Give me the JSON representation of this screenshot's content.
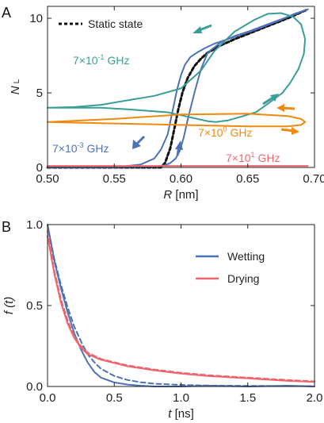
{
  "panels": {
    "a": "A",
    "b": "B"
  },
  "colors": {
    "teal": "#3a9e96",
    "orange": "#f0890f",
    "blue": "#4d72b8",
    "red": "#f0646e",
    "black": "#111111"
  },
  "chart_data": [
    {
      "type": "line",
      "panel": "A",
      "xlabel_italic": "R",
      "xlabel_unit": " [nm]",
      "ylabel_main": "N",
      "ylabel_sub": "L",
      "xlim": [
        0.5,
        0.7
      ],
      "ylim": [
        0,
        10.8
      ],
      "x_ticks": [
        0.5,
        0.55,
        0.6,
        0.65,
        0.7
      ],
      "x_tick_labels": [
        "0.50",
        "0.55",
        "0.60",
        "0.65",
        "0.70"
      ],
      "y_ticks": [
        0,
        5,
        10
      ],
      "y_tick_labels": [
        "0",
        "5",
        "10"
      ],
      "legend": {
        "label": "Static state",
        "placement": "top-left"
      },
      "annotations": {
        "teal": {
          "pre": "7×10",
          "exp": "-1",
          "post": " GHz"
        },
        "orange": {
          "pre": "7×10",
          "exp": "0",
          "post": " GHz"
        },
        "blue": {
          "pre": "7×10",
          "exp": "-3",
          "post": " GHz"
        },
        "red": {
          "pre": "7×10",
          "exp": "1",
          "post": " GHz"
        }
      },
      "series": [
        {
          "name": "Static state",
          "color": "#111111",
          "dashed": true,
          "x": [
            0.5,
            0.585,
            0.588,
            0.592,
            0.595,
            0.598,
            0.601,
            0.605,
            0.61,
            0.615,
            0.62,
            0.63,
            0.64,
            0.65,
            0.66,
            0.67,
            0.68,
            0.69,
            0.695
          ],
          "y": [
            0.0,
            0.0,
            0.3,
            1.3,
            2.6,
            3.9,
            5.0,
            6.0,
            6.8,
            7.3,
            7.7,
            8.2,
            8.6,
            8.95,
            9.3,
            9.65,
            10.0,
            10.4,
            10.6
          ]
        },
        {
          "color": "#4d72b8",
          "x": [
            0.5,
            0.55,
            0.57,
            0.58,
            0.585,
            0.59,
            0.593,
            0.597,
            0.6,
            0.603,
            0.607,
            0.612,
            0.618,
            0.625,
            0.635,
            0.645,
            0.655,
            0.665,
            0.675,
            0.685,
            0.695
          ],
          "y": [
            0.0,
            0.0,
            0.2,
            0.6,
            1.2,
            2.2,
            3.5,
            5.2,
            6.2,
            6.9,
            7.4,
            7.7,
            8.0,
            8.3,
            8.6,
            8.9,
            9.2,
            9.55,
            9.9,
            10.3,
            10.6
          ]
        },
        {
          "color": "#4d72b8",
          "x": [
            0.695,
            0.68,
            0.665,
            0.65,
            0.64,
            0.63,
            0.62,
            0.615,
            0.61,
            0.605,
            0.602,
            0.599,
            0.596,
            0.592,
            0.588,
            0.584,
            0.58,
            0.575,
            0.57,
            0.56,
            0.55,
            0.5
          ],
          "y": [
            10.6,
            10.1,
            9.6,
            9.1,
            8.8,
            8.4,
            7.7,
            6.6,
            5.0,
            3.2,
            2.0,
            1.1,
            0.6,
            0.3,
            0.15,
            0.1,
            0.05,
            0.03,
            0.02,
            0.01,
            0.0,
            0.0
          ]
        },
        {
          "color": "#3a9e96",
          "x": [
            0.5,
            0.52,
            0.54,
            0.56,
            0.58,
            0.6,
            0.615,
            0.625,
            0.64,
            0.655,
            0.665,
            0.675,
            0.684,
            0.69,
            0.693,
            0.692,
            0.688,
            0.682,
            0.676,
            0.67,
            0.664,
            0.656,
            0.645,
            0.635,
            0.626,
            0.62,
            0.61,
            0.6,
            0.59,
            0.575,
            0.56,
            0.54,
            0.52,
            0.5
          ],
          "y": [
            4.0,
            4.05,
            4.2,
            4.5,
            4.8,
            5.3,
            6.5,
            7.8,
            9.1,
            9.9,
            10.3,
            10.35,
            10.1,
            9.6,
            8.6,
            7.6,
            6.6,
            5.7,
            5.0,
            4.6,
            4.2,
            3.7,
            3.4,
            3.15,
            3.05,
            3.1,
            3.3,
            3.5,
            3.7,
            3.8,
            3.9,
            4.0,
            4.0,
            4.0
          ]
        },
        {
          "color": "#f0890f",
          "x": [
            0.5,
            0.55,
            0.6,
            0.65,
            0.68,
            0.69,
            0.693,
            0.69,
            0.68,
            0.65,
            0.6,
            0.55,
            0.5
          ],
          "y": [
            3.05,
            3.25,
            3.55,
            3.6,
            3.45,
            3.25,
            3.05,
            2.85,
            2.75,
            2.75,
            2.85,
            2.95,
            3.05
          ]
        },
        {
          "color": "#f0646e",
          "x": [
            0.5,
            0.695
          ],
          "y": [
            0.1,
            0.1
          ]
        }
      ]
    },
    {
      "type": "line",
      "panel": "B",
      "xlabel_italic": "t",
      "xlabel_unit": " [ns]",
      "ylabel_main": "f (t)",
      "xlim": [
        0.0,
        2.0
      ],
      "ylim": [
        0.0,
        1.0
      ],
      "x_ticks": [
        0.0,
        0.5,
        1.0,
        1.5,
        2.0
      ],
      "x_tick_labels": [
        "0.0",
        "0.5",
        "1.0",
        "1.5",
        "2.0"
      ],
      "y_ticks": [
        0.0,
        0.5,
        1.0
      ],
      "y_tick_labels": [
        "0.0",
        "0.5",
        "1.0"
      ],
      "legend": {
        "placement": "top-right"
      },
      "series": [
        {
          "name": "Wetting",
          "color": "#4d72b8",
          "x": [
            0.0,
            0.05,
            0.1,
            0.15,
            0.2,
            0.25,
            0.3,
            0.35,
            0.4,
            0.5,
            0.6,
            0.7,
            0.8,
            1.0,
            1.2,
            1.5,
            1.8,
            2.0
          ],
          "y": [
            1.0,
            0.78,
            0.61,
            0.46,
            0.33,
            0.23,
            0.15,
            0.09,
            0.055,
            0.025,
            0.012,
            0.005,
            0.0,
            0.0,
            0.005,
            0.0,
            0.005,
            0.0
          ]
        },
        {
          "color": "#4d72b8",
          "dashed": true,
          "x": [
            0.0,
            0.05,
            0.1,
            0.15,
            0.2,
            0.25,
            0.3,
            0.35,
            0.4,
            0.5,
            0.6,
            0.7,
            0.8,
            1.0,
            1.2,
            1.5,
            1.8,
            2.0
          ],
          "y": [
            1.0,
            0.79,
            0.63,
            0.49,
            0.37,
            0.28,
            0.2,
            0.15,
            0.11,
            0.065,
            0.04,
            0.026,
            0.017,
            0.01,
            0.006,
            0.004,
            0.003,
            0.002
          ]
        },
        {
          "name": "Drying",
          "color": "#f0646e",
          "x": [
            0.0,
            0.05,
            0.1,
            0.15,
            0.2,
            0.25,
            0.3,
            0.4,
            0.5,
            0.6,
            0.8,
            1.0,
            1.2,
            1.5,
            1.8,
            2.0
          ],
          "y": [
            0.93,
            0.7,
            0.52,
            0.39,
            0.3,
            0.24,
            0.2,
            0.165,
            0.145,
            0.125,
            0.1,
            0.08,
            0.065,
            0.05,
            0.035,
            0.028
          ]
        },
        {
          "color": "#f0646e",
          "dashed": true,
          "x": [
            0.0,
            0.05,
            0.1,
            0.15,
            0.2,
            0.25,
            0.3,
            0.4,
            0.5,
            0.6,
            0.8,
            1.0,
            1.2,
            1.5,
            1.8,
            2.0
          ],
          "y": [
            0.96,
            0.72,
            0.54,
            0.41,
            0.31,
            0.25,
            0.21,
            0.17,
            0.15,
            0.13,
            0.105,
            0.085,
            0.07,
            0.055,
            0.04,
            0.032
          ]
        }
      ]
    }
  ]
}
